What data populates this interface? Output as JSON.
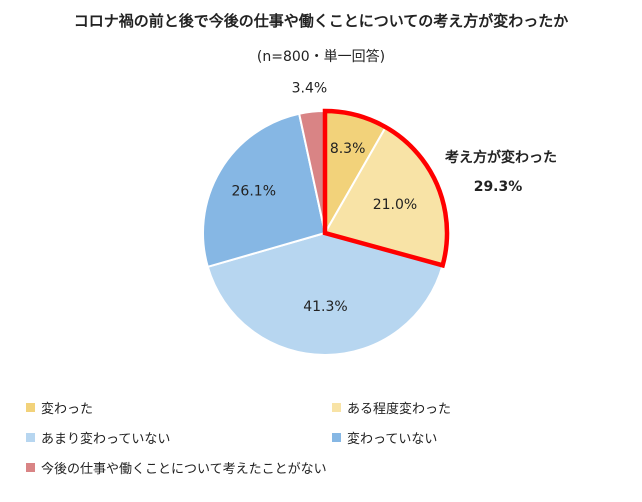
{
  "chart_data": {
    "type": "pie",
    "title": "コロナ禍の前と後で今後の仕事や働くことについての考え方が変わったか",
    "subtitle": "(n=800・単一回答)",
    "categories": [
      "変わった",
      "ある程度変わった",
      "あまり変わっていない",
      "変わっていない",
      "今後の仕事や働くことについて考えたことがない"
    ],
    "values": [
      8.3,
      21.0,
      41.3,
      26.1,
      3.4
    ],
    "value_labels": [
      "8.3%",
      "21.0%",
      "41.3%",
      "26.1%",
      "3.4%"
    ],
    "colors": [
      "#f2d27a",
      "#f8e3a6",
      "#b7d6f0",
      "#86b7e4",
      "#d98485"
    ],
    "start": "12 o'clock",
    "direction": "clockwise",
    "legend_placement": "bottom",
    "highlight": {
      "label": "考え方が変わった",
      "value_label": "29.3%",
      "slices": [
        0,
        1
      ],
      "outline_color": "#ff0000"
    }
  }
}
